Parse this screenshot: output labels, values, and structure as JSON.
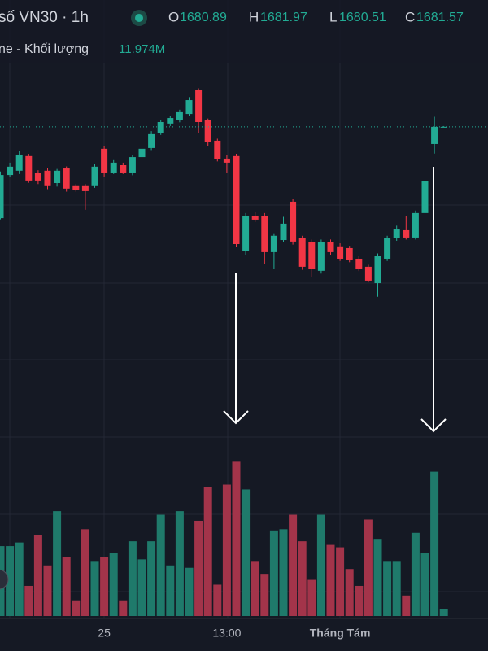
{
  "chart_data": {
    "type": "candlestick",
    "title": "số VN30 · 1h",
    "header": {
      "open_tag": "O",
      "open": "1680.89",
      "high_tag": "H",
      "high": "1681.97",
      "low_tag": "L",
      "low": "1680.51",
      "close_tag": "C",
      "close": "1681.57"
    },
    "volume_title": "ne - Khối lượng",
    "volume_label": "11.974M",
    "categories": [
      null,
      null,
      null,
      null,
      null,
      null,
      null,
      null,
      null,
      null,
      null,
      "25",
      null,
      null,
      null,
      null,
      null,
      null,
      null,
      null,
      null,
      null,
      null,
      null,
      "13:00",
      null,
      null,
      null,
      null,
      null,
      null,
      null,
      null,
      null,
      null,
      null,
      "Tháng Tám",
      null,
      null,
      null,
      null,
      null,
      null,
      null,
      null,
      null,
      null,
      null
    ],
    "open": [
      1677.95,
      1679.66,
      1679.83,
      1680.41,
      1679.73,
      1679.83,
      1679.34,
      1679.92,
      1679.25,
      1679.25,
      1679.25,
      1680.7,
      1679.76,
      1680.05,
      1679.76,
      1680.37,
      1680.73,
      1681.34,
      1681.7,
      1681.83,
      1682.08,
      1683.05,
      1681.83,
      1681.02,
      1680.31,
      1680.41,
      1676.66,
      1678.05,
      1678.05,
      1676.6,
      1677.08,
      1678.6,
      1677.15,
      1676.99,
      1675.86,
      1676.99,
      1676.83,
      1676.76,
      1676.34,
      1676.02,
      1675.37,
      1676.34,
      1677.15,
      1677.47,
      1677.18,
      1678.15,
      1680.89,
      1681.57
    ],
    "high": [
      1679.8,
      1680.15,
      1680.6,
      1680.5,
      1679.85,
      1679.95,
      1679.9,
      1680.0,
      1679.3,
      1679.3,
      1680.1,
      1680.8,
      1680.25,
      1680.15,
      1680.45,
      1680.8,
      1681.4,
      1681.85,
      1682.0,
      1682.25,
      1682.75,
      1683.1,
      1681.9,
      1681.1,
      1680.47,
      1680.5,
      1678.15,
      1678.2,
      1678.15,
      1677.35,
      1678.0,
      1678.7,
      1677.25,
      1677.1,
      1677.1,
      1677.1,
      1676.95,
      1676.85,
      1676.45,
      1676.1,
      1676.55,
      1677.25,
      1677.65,
      1678.05,
      1678.25,
      1679.5,
      1681.97,
      1681.6
    ],
    "low": [
      1677.9,
      1679.57,
      1679.7,
      1679.35,
      1679.3,
      1679.1,
      1679.2,
      1679.0,
      1679.0,
      1678.28,
      1679.15,
      1679.6,
      1679.7,
      1679.7,
      1679.65,
      1680.3,
      1680.65,
      1681.25,
      1681.6,
      1681.75,
      1682.0,
      1681.34,
      1680.8,
      1680.2,
      1679.76,
      1676.8,
      1676.5,
      1677.8,
      1676.12,
      1675.95,
      1677.0,
      1676.9,
      1675.9,
      1675.63,
      1675.75,
      1676.5,
      1676.25,
      1676.2,
      1675.85,
      1675.4,
      1674.83,
      1676.25,
      1677.05,
      1677.1,
      1677.1,
      1678.05,
      1680.51,
      1681.55
    ],
    "close": [
      1679.66,
      1679.99,
      1680.47,
      1679.44,
      1679.44,
      1679.25,
      1679.83,
      1679.12,
      1679.08,
      1679.02,
      1679.99,
      1679.76,
      1680.15,
      1679.76,
      1680.37,
      1680.7,
      1681.28,
      1681.76,
      1681.92,
      1682.15,
      1682.63,
      1681.76,
      1680.96,
      1680.28,
      1680.15,
      1676.92,
      1678.05,
      1677.89,
      1676.6,
      1677.25,
      1677.73,
      1677.02,
      1676.02,
      1675.95,
      1676.99,
      1676.6,
      1676.34,
      1676.28,
      1675.95,
      1675.47,
      1676.44,
      1677.15,
      1677.5,
      1677.18,
      1678.15,
      1679.41,
      1681.57,
      1681.57
    ],
    "volume": [
      5.8,
      5.8,
      6.1,
      2.5,
      6.7,
      4.2,
      8.7,
      4.9,
      1.3,
      7.2,
      4.5,
      4.9,
      5.2,
      1.3,
      6.2,
      4.7,
      6.2,
      8.4,
      4.2,
      8.7,
      4.0,
      7.9,
      10.7,
      2.6,
      10.9,
      12.8,
      10.5,
      4.5,
      3.5,
      7.1,
      7.2,
      8.4,
      6.2,
      3.0,
      8.4,
      5.9,
      5.7,
      3.9,
      2.5,
      8.0,
      6.4,
      4.5,
      4.5,
      1.7,
      6.9,
      5.2,
      11.974,
      0.6
    ],
    "ylim": [
      1674.5,
      1686.6
    ],
    "vlim": [
      0,
      13.5
    ],
    "up_color": "#22ab94",
    "down_color": "#f23645",
    "volume_up_color": "#1f7a6b",
    "volume_down_color": "#a3344a",
    "last_price_line": true
  }
}
